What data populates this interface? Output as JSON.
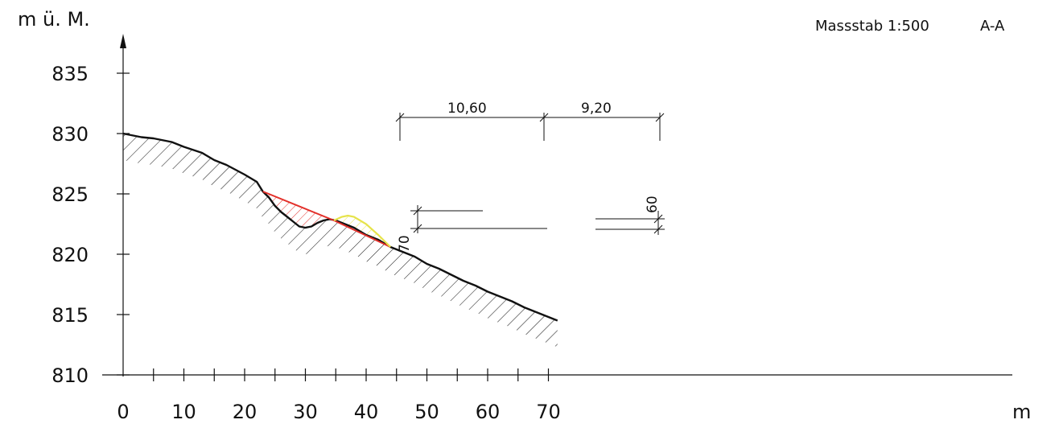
{
  "header": {
    "scale_label": "Massstab 1:500",
    "section_label": "A-A"
  },
  "axes": {
    "y_title": "m ü. M.",
    "x_unit": "m",
    "y_ticks": [
      "835",
      "830",
      "825",
      "820",
      "815",
      "810"
    ],
    "x_ticks": [
      "0",
      "10",
      "20",
      "30",
      "40",
      "50",
      "60",
      "70"
    ]
  },
  "dimensions": {
    "span_1": "10,60",
    "span_2": "9,20",
    "depth": "70",
    "height": "60"
  },
  "colors": {
    "terrain": "#111111",
    "cut": "#e3302a",
    "fill": "#e6e34a"
  },
  "chart_data": {
    "type": "line",
    "x_unit": "m",
    "y_unit": "m ü. M.",
    "xlim": [
      0,
      72
    ],
    "ylim": [
      810,
      837
    ],
    "series": [
      {
        "role": "terrain",
        "points": [
          [
            0,
            830
          ],
          [
            3,
            829.7
          ],
          [
            5,
            829.6
          ],
          [
            8,
            829.3
          ],
          [
            10,
            828.9
          ],
          [
            13,
            828.4
          ],
          [
            15,
            827.8
          ],
          [
            17,
            827.4
          ],
          [
            20,
            826.6
          ],
          [
            22,
            826.0
          ],
          [
            23,
            825.2
          ],
          [
            24,
            824.7
          ],
          [
            25,
            824.0
          ],
          [
            26,
            823.5
          ],
          [
            27,
            823.1
          ],
          [
            28,
            822.7
          ],
          [
            29,
            822.3
          ],
          [
            30,
            822.2
          ],
          [
            31,
            822.3
          ],
          [
            32,
            822.6
          ],
          [
            33,
            822.8
          ],
          [
            34,
            822.9
          ],
          [
            35,
            822.8
          ],
          [
            36,
            822.6
          ],
          [
            38,
            822.2
          ],
          [
            40,
            821.6
          ],
          [
            42,
            821.2
          ],
          [
            44,
            820.6
          ],
          [
            46,
            820.2
          ],
          [
            48,
            819.8
          ],
          [
            50,
            819.2
          ],
          [
            52,
            818.8
          ],
          [
            54,
            818.3
          ],
          [
            56,
            817.8
          ],
          [
            58,
            817.4
          ],
          [
            60,
            816.9
          ],
          [
            62,
            816.5
          ],
          [
            64,
            816.1
          ],
          [
            66,
            815.6
          ],
          [
            68,
            815.2
          ],
          [
            70,
            814.8
          ],
          [
            71.5,
            814.5
          ]
        ]
      },
      {
        "role": "cut-line",
        "points": [
          [
            23,
            825.2
          ],
          [
            34.7,
            822.8
          ],
          [
            44,
            820.6
          ]
        ]
      },
      {
        "role": "fill-mound",
        "points": [
          [
            34.7,
            822.8
          ],
          [
            36,
            823.1
          ],
          [
            37,
            823.2
          ],
          [
            38,
            823.1
          ],
          [
            40,
            822.5
          ],
          [
            42,
            821.6
          ],
          [
            43,
            821.1
          ],
          [
            44,
            820.6
          ]
        ]
      }
    ]
  }
}
